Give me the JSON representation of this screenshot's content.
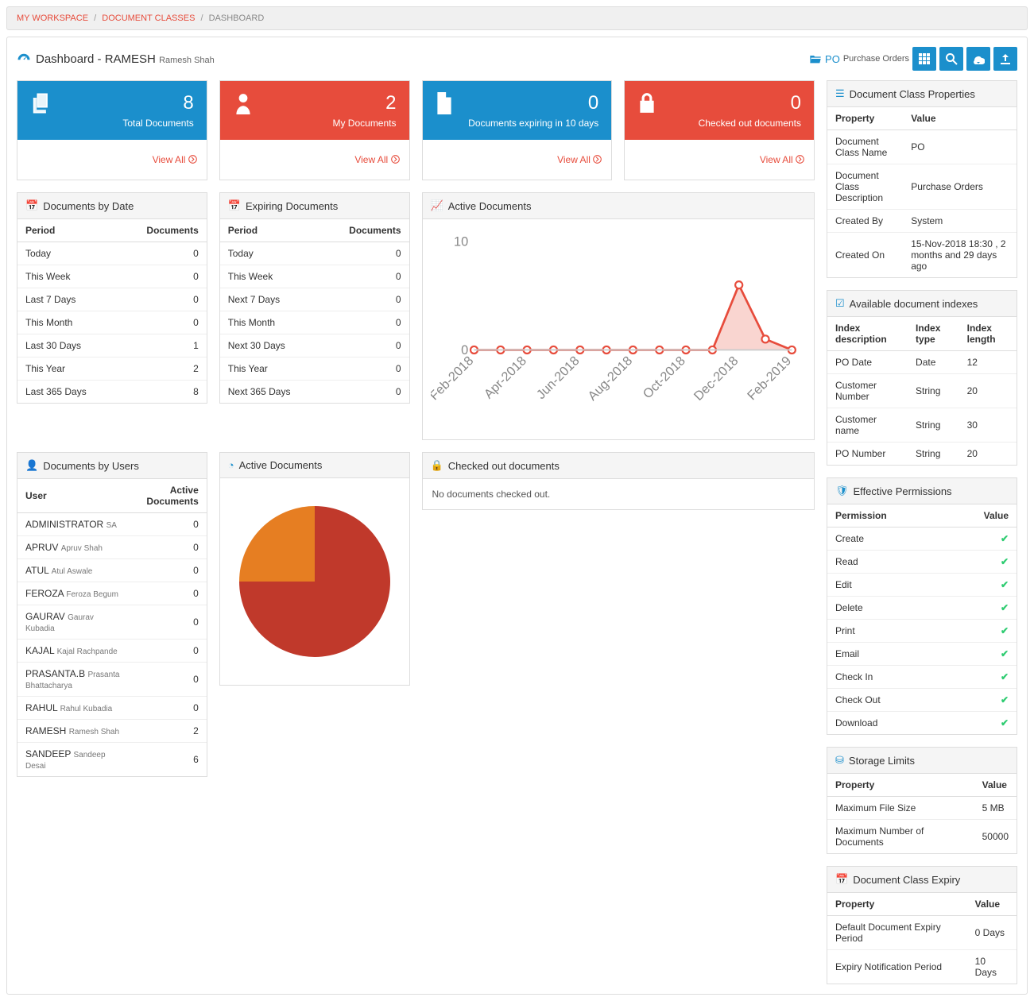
{
  "breadcrumb": {
    "items": [
      {
        "label": "MY WORKSPACE",
        "link": true
      },
      {
        "label": "DOCUMENT CLASSES",
        "link": true
      },
      {
        "label": "DASHBOARD",
        "link": false
      }
    ]
  },
  "header": {
    "title_prefix": "Dashboard -",
    "user_upper": "RAMESH",
    "user_full": "Ramesh Shah",
    "doc_class_code": "PO",
    "doc_class_name": "Purchase Orders"
  },
  "stat_cards": [
    {
      "value": "8",
      "label": "Total Documents",
      "view_all": "View All",
      "color": "blue",
      "icon": "copy"
    },
    {
      "value": "2",
      "label": "My Documents",
      "view_all": "View All",
      "color": "red",
      "icon": "user"
    },
    {
      "value": "0",
      "label": "Documents expiring in 10 days",
      "view_all": "View All",
      "color": "blue",
      "icon": "file"
    },
    {
      "value": "0",
      "label": "Checked out documents",
      "view_all": "View All",
      "color": "red",
      "icon": "lock"
    }
  ],
  "docs_by_date": {
    "title": "Documents by Date",
    "headers": [
      "Period",
      "Documents"
    ],
    "rows": [
      [
        "Today",
        "0"
      ],
      [
        "This Week",
        "0"
      ],
      [
        "Last 7 Days",
        "0"
      ],
      [
        "This Month",
        "0"
      ],
      [
        "Last 30 Days",
        "1"
      ],
      [
        "This Year",
        "2"
      ],
      [
        "Last 365 Days",
        "8"
      ]
    ]
  },
  "expiring_docs": {
    "title": "Expiring Documents",
    "headers": [
      "Period",
      "Documents"
    ],
    "rows": [
      [
        "Today",
        "0"
      ],
      [
        "This Week",
        "0"
      ],
      [
        "Next 7 Days",
        "0"
      ],
      [
        "This Month",
        "0"
      ],
      [
        "Next 30 Days",
        "0"
      ],
      [
        "This Year",
        "0"
      ],
      [
        "Next 365 Days",
        "0"
      ]
    ]
  },
  "active_docs_chart": {
    "title": "Active Documents",
    "type": "line",
    "x_labels": [
      "Feb-2018",
      "Apr-2018",
      "Jun-2018",
      "Aug-2018",
      "Oct-2018",
      "Dec-2018",
      "Feb-2019"
    ],
    "y_ticks": [
      0,
      10
    ],
    "y_max": 10,
    "points_x": [
      0,
      1,
      2,
      3,
      4,
      5,
      6,
      7,
      8,
      9,
      10,
      11,
      12
    ],
    "points_y": [
      0,
      0,
      0,
      0,
      0,
      0,
      0,
      0,
      0,
      0,
      6,
      1,
      0
    ],
    "line_color": "#e74c3c",
    "fill_color": "#f9d5d0",
    "marker_color": "#e74c3c",
    "marker_fill": "#ffffff",
    "grid_color": "#ccc",
    "text_color": "#888",
    "label_fontsize": 9
  },
  "docs_by_users": {
    "title": "Documents by Users",
    "headers": [
      "User",
      "Active Documents"
    ],
    "rows": [
      {
        "upper": "ADMINISTRATOR",
        "full": "SA",
        "count": "0"
      },
      {
        "upper": "APRUV",
        "full": "Apruv Shah",
        "count": "0"
      },
      {
        "upper": "ATUL",
        "full": "Atul Aswale",
        "count": "0"
      },
      {
        "upper": "FEROZA",
        "full": "Feroza Begum",
        "count": "0"
      },
      {
        "upper": "GAURAV",
        "full": "Gaurav Kubadia",
        "count": "0"
      },
      {
        "upper": "KAJAL",
        "full": "Kajal Rachpande",
        "count": "0"
      },
      {
        "upper": "PRASANTA.B",
        "full": "Prasanta Bhattacharya",
        "count": "0"
      },
      {
        "upper": "RAHUL",
        "full": "Rahul Kubadia",
        "count": "0"
      },
      {
        "upper": "RAMESH",
        "full": "Ramesh Shah",
        "count": "2"
      },
      {
        "upper": "SANDEEP",
        "full": "Sandeep Desai",
        "count": "6"
      }
    ]
  },
  "active_docs_pie": {
    "title": "Active Documents",
    "type": "pie",
    "slices": [
      {
        "value": 75,
        "color": "#c0392b"
      },
      {
        "value": 25,
        "color": "#e67e22"
      }
    ],
    "start_angle": -90,
    "background_color": "#ffffff"
  },
  "checked_out": {
    "title": "Checked out documents",
    "empty_message": "No documents checked out."
  },
  "doc_class_props": {
    "title": "Document Class Properties",
    "headers": [
      "Property",
      "Value"
    ],
    "rows": [
      [
        "Document Class Name",
        "PO"
      ],
      [
        "Document Class Description",
        "Purchase Orders"
      ],
      [
        "Created By",
        "System"
      ],
      [
        "Created On",
        "15-Nov-2018 18:30 , 2 months and 29 days ago"
      ]
    ]
  },
  "indexes": {
    "title": "Available document indexes",
    "headers": [
      "Index description",
      "Index type",
      "Index length"
    ],
    "rows": [
      [
        "PO Date",
        "Date",
        "12"
      ],
      [
        "Customer Number",
        "String",
        "20"
      ],
      [
        "Customer name",
        "String",
        "30"
      ],
      [
        "PO Number",
        "String",
        "20"
      ]
    ]
  },
  "permissions": {
    "title": "Effective Permissions",
    "headers": [
      "Permission",
      "Value"
    ],
    "rows": [
      {
        "name": "Create",
        "granted": true
      },
      {
        "name": "Read",
        "granted": true
      },
      {
        "name": "Edit",
        "granted": true
      },
      {
        "name": "Delete",
        "granted": true
      },
      {
        "name": "Print",
        "granted": true
      },
      {
        "name": "Email",
        "granted": true
      },
      {
        "name": "Check In",
        "granted": true
      },
      {
        "name": "Check Out",
        "granted": true
      },
      {
        "name": "Download",
        "granted": true
      }
    ]
  },
  "storage": {
    "title": "Storage Limits",
    "headers": [
      "Property",
      "Value"
    ],
    "rows": [
      [
        "Maximum File Size",
        "5 MB"
      ],
      [
        "Maximum Number of Documents",
        "50000"
      ]
    ]
  },
  "expiry": {
    "title": "Document Class Expiry",
    "headers": [
      "Property",
      "Value"
    ],
    "rows": [
      [
        "Default Document Expiry Period",
        "0 Days"
      ],
      [
        "Expiry Notification Period",
        "10 Days"
      ]
    ]
  }
}
